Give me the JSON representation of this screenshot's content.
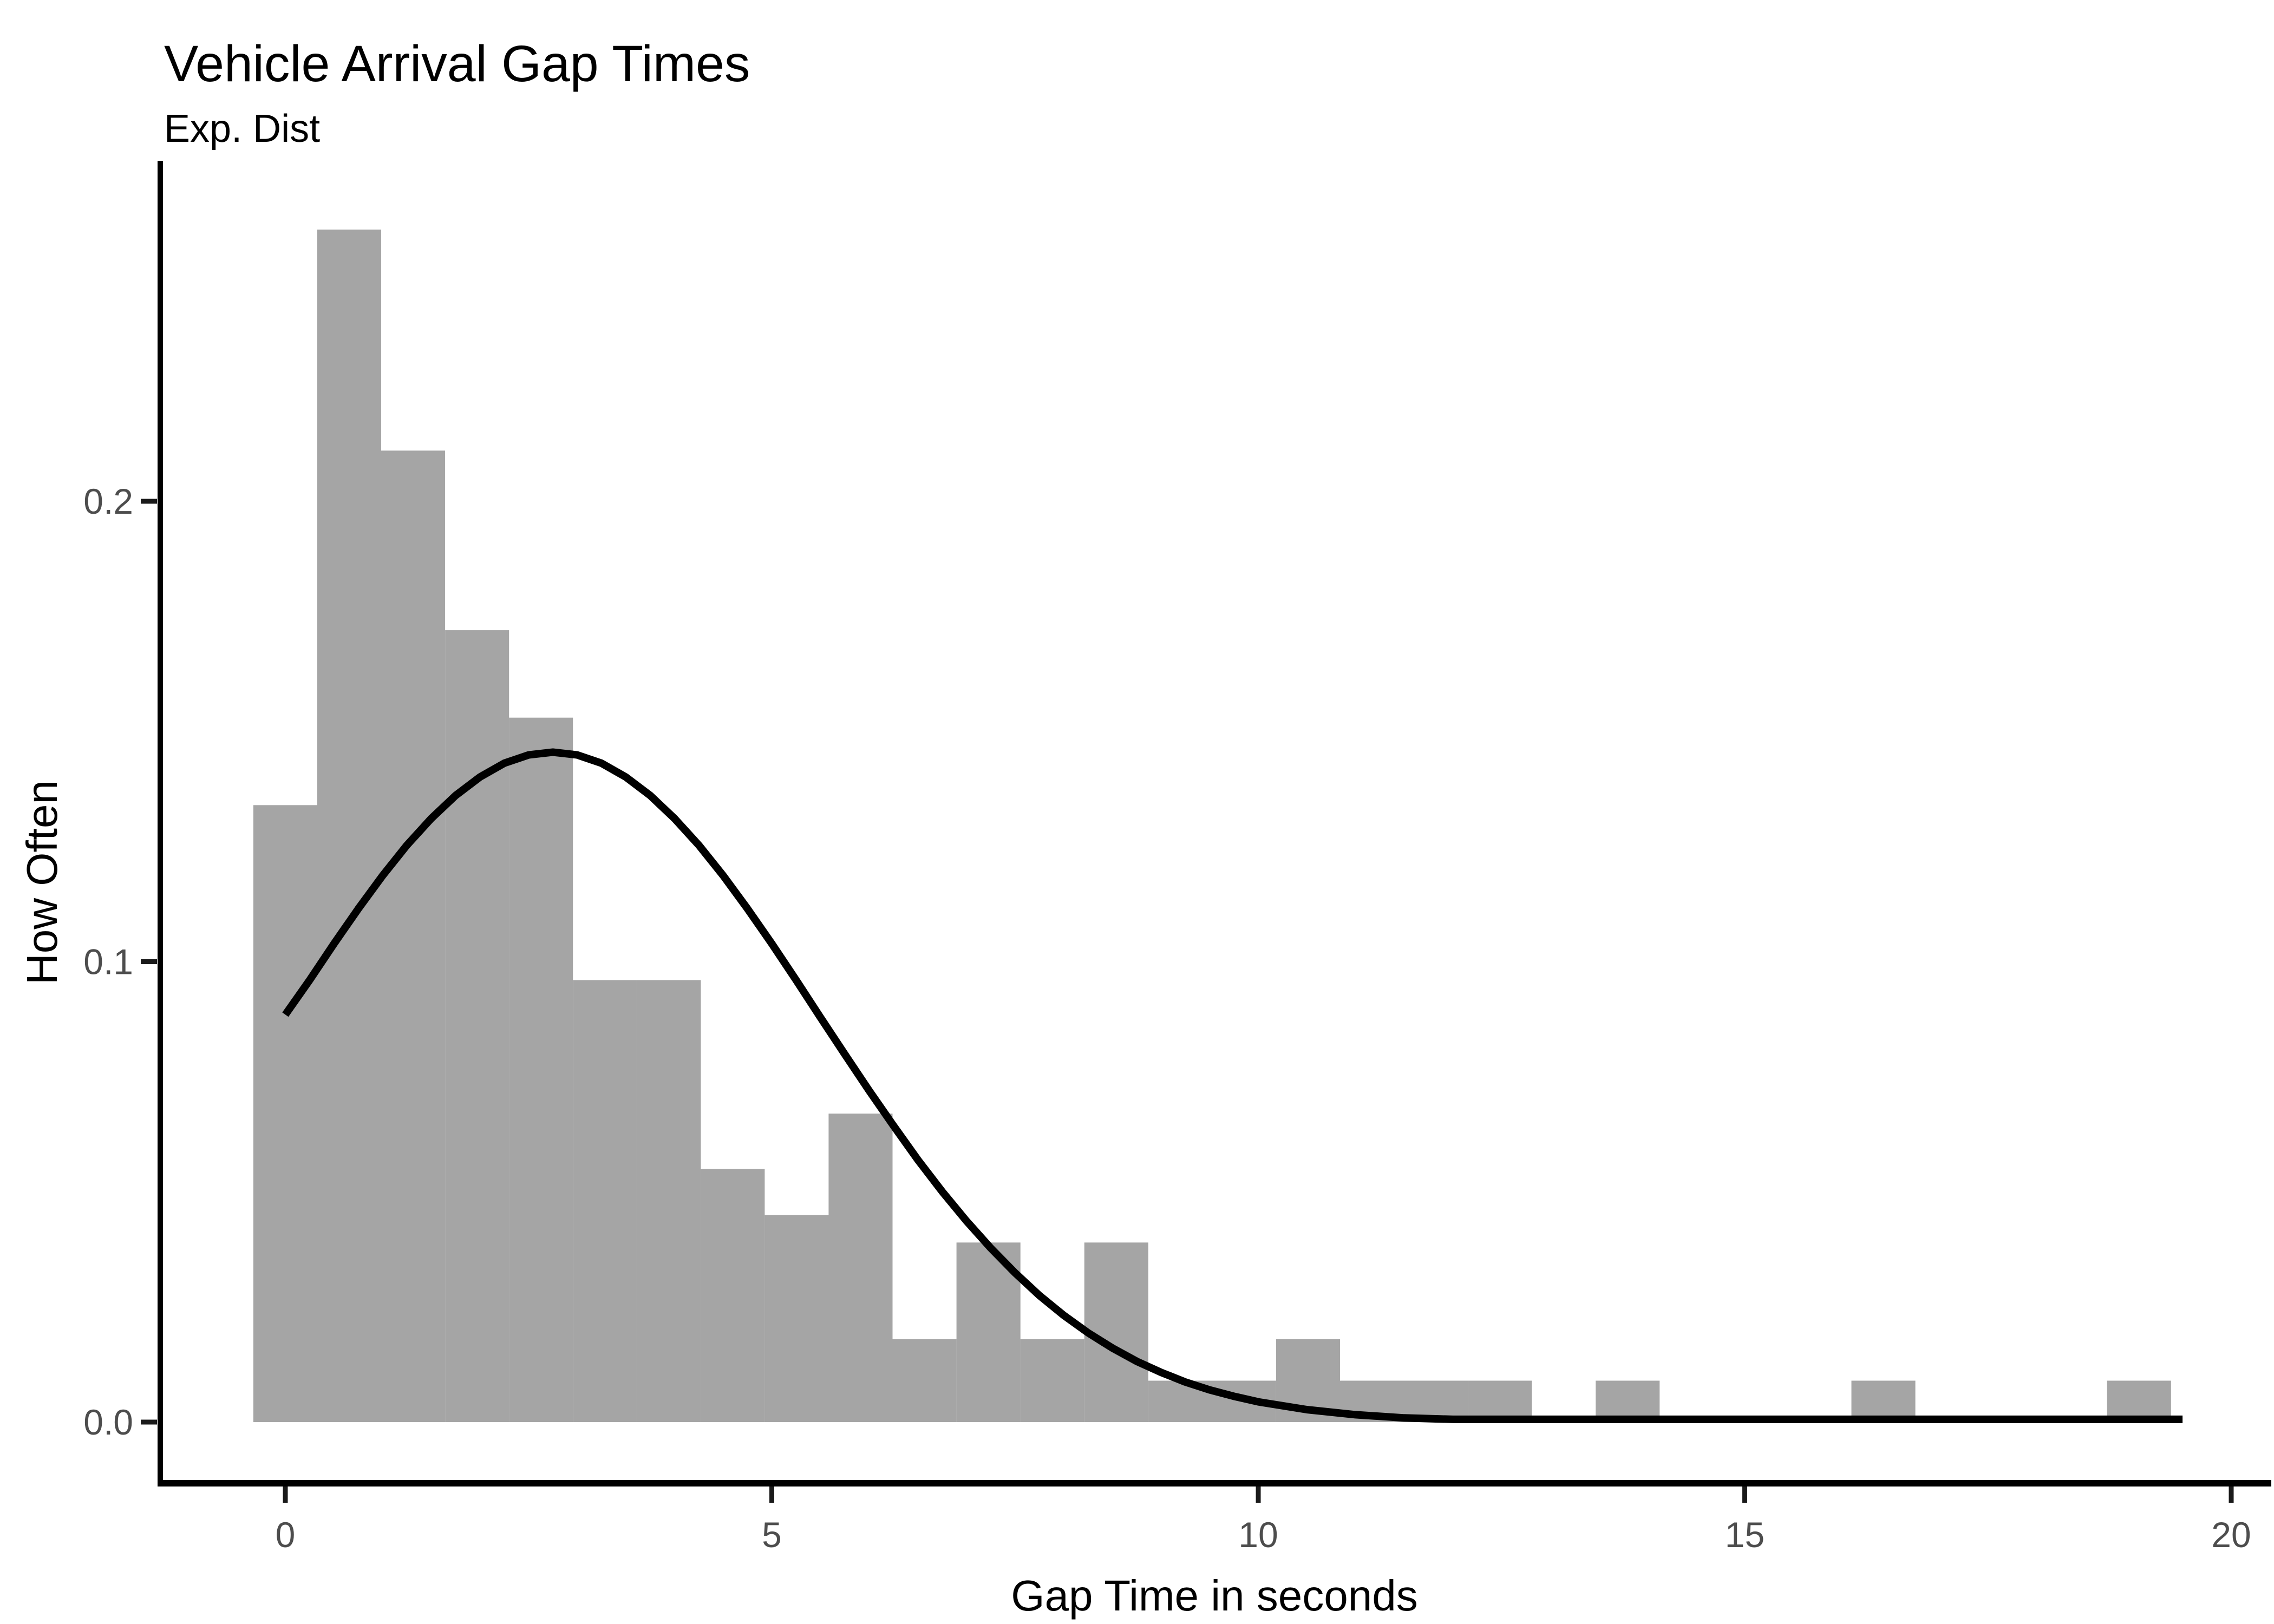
{
  "header": {
    "title": "Vehicle Arrival Gap Times",
    "subtitle": "Exp. Dist"
  },
  "axes": {
    "x_label": "Gap Time in seconds",
    "y_label": "How Often",
    "x_tick_labels": [
      "0",
      "5",
      "10",
      "15",
      "20"
    ],
    "y_tick_labels": [
      "0.0",
      "0.1",
      "0.2"
    ]
  },
  "chart_data": {
    "type": "bar",
    "subtype": "histogram_with_density_curve",
    "title": "Vehicle Arrival Gap Times",
    "subtitle": "Exp. Dist",
    "xlabel": "Gap Time in seconds",
    "ylabel": "How Often",
    "xlim": [
      -1.3,
      20.4
    ],
    "ylim": [
      -0.013,
      0.274
    ],
    "x_ticks": [
      0,
      5,
      10,
      15,
      20
    ],
    "y_ticks": [
      0.0,
      0.1,
      0.2
    ],
    "grid": "off",
    "legend": "none",
    "histogram": {
      "bin_start": -0.329,
      "bin_width": 0.657,
      "densities": [
        0.134,
        0.259,
        0.211,
        0.172,
        0.153,
        0.096,
        0.096,
        0.055,
        0.045,
        0.067,
        0.018,
        0.039,
        0.018,
        0.039,
        0.009,
        0.009,
        0.018,
        0.009,
        0.009,
        0.009,
        0,
        0.009,
        0,
        0,
        0,
        0.009,
        0,
        0,
        0,
        0.009
      ]
    },
    "curve": {
      "name": "fitted distribution curve",
      "points": [
        [
          0.0,
          0.0885
        ],
        [
          0.25,
          0.096
        ],
        [
          0.5,
          0.1039
        ],
        [
          0.75,
          0.1115
        ],
        [
          1.0,
          0.1187
        ],
        [
          1.25,
          0.1253
        ],
        [
          1.5,
          0.1311
        ],
        [
          1.75,
          0.1361
        ],
        [
          2.0,
          0.1401
        ],
        [
          2.25,
          0.1431
        ],
        [
          2.5,
          0.1449
        ],
        [
          2.75,
          0.1455
        ],
        [
          3.0,
          0.1449
        ],
        [
          3.25,
          0.1431
        ],
        [
          3.5,
          0.1401
        ],
        [
          3.75,
          0.1361
        ],
        [
          4.0,
          0.1311
        ],
        [
          4.25,
          0.1253
        ],
        [
          4.5,
          0.1187
        ],
        [
          4.75,
          0.1115
        ],
        [
          5.0,
          0.1039
        ],
        [
          5.25,
          0.096
        ],
        [
          5.5,
          0.0879
        ],
        [
          5.75,
          0.0799
        ],
        [
          6.0,
          0.072
        ],
        [
          6.25,
          0.0644
        ],
        [
          6.5,
          0.057
        ],
        [
          6.75,
          0.0501
        ],
        [
          7.0,
          0.0437
        ],
        [
          7.25,
          0.0378
        ],
        [
          7.5,
          0.0324
        ],
        [
          7.75,
          0.0275
        ],
        [
          8.0,
          0.0232
        ],
        [
          8.25,
          0.0194
        ],
        [
          8.5,
          0.0161
        ],
        [
          8.75,
          0.0132
        ],
        [
          9.0,
          0.0108
        ],
        [
          9.25,
          0.0087
        ],
        [
          9.5,
          0.007
        ],
        [
          9.75,
          0.0056
        ],
        [
          10.0,
          0.0044
        ],
        [
          10.5,
          0.0027
        ],
        [
          11.0,
          0.0016
        ],
        [
          11.5,
          0.0009
        ],
        [
          12.0,
          0.0006
        ],
        [
          13.0,
          0.0006
        ],
        [
          14.0,
          0.0006
        ],
        [
          15.0,
          0.0006
        ],
        [
          16.0,
          0.0006
        ],
        [
          17.0,
          0.0006
        ],
        [
          18.0,
          0.0006
        ],
        [
          19.0,
          0.0006
        ],
        [
          19.5,
          0.0006
        ]
      ]
    },
    "colors": {
      "bar_fill": "#a5a5a5",
      "curve_stroke": "#000000",
      "axis_line": "#000000",
      "tick_mark": "#1a1a1a",
      "tick_label": "#4d4d4d",
      "text": "#000000",
      "background": "#ffffff"
    }
  }
}
